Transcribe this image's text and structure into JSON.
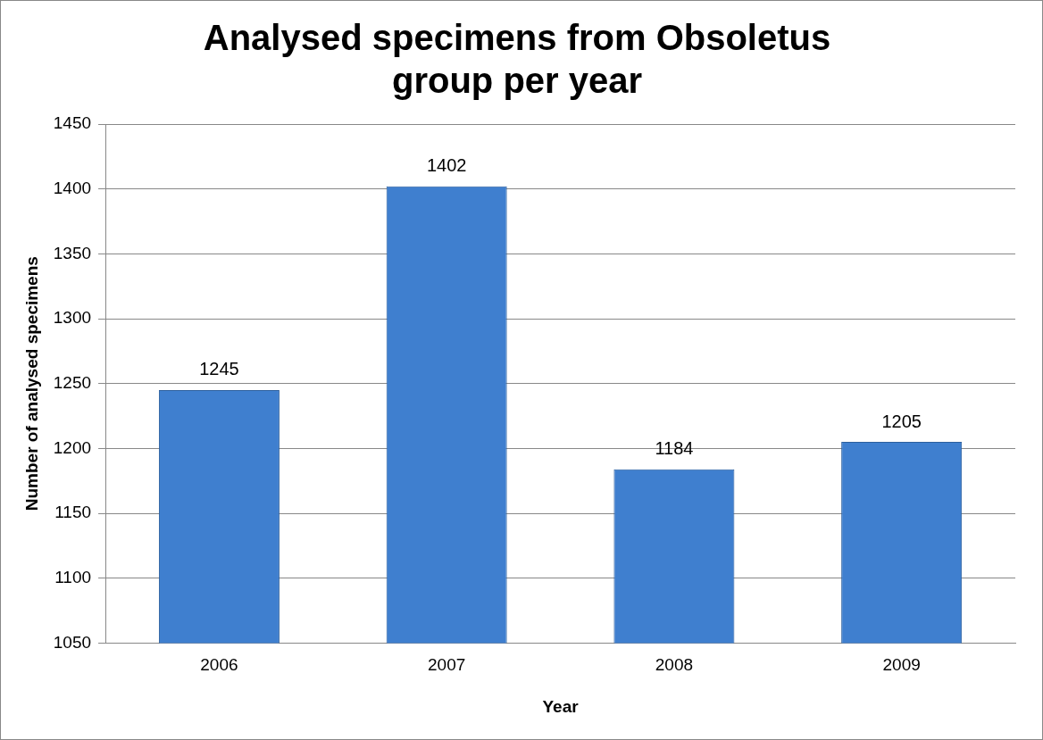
{
  "chart_data": {
    "type": "bar",
    "title": "Analysed specimens from Obsoletus group per year",
    "xlabel": "Year",
    "ylabel": "Number of analysed specimens",
    "categories": [
      "2006",
      "2007",
      "2008",
      "2009"
    ],
    "values": [
      1245,
      1402,
      1184,
      1205
    ],
    "color": "#3f7fcf",
    "ylim": [
      1050,
      1450
    ],
    "yticks": [
      1050,
      1100,
      1150,
      1200,
      1250,
      1300,
      1350,
      1400,
      1450
    ],
    "grid": "y",
    "data_labels": true,
    "legend": false
  }
}
